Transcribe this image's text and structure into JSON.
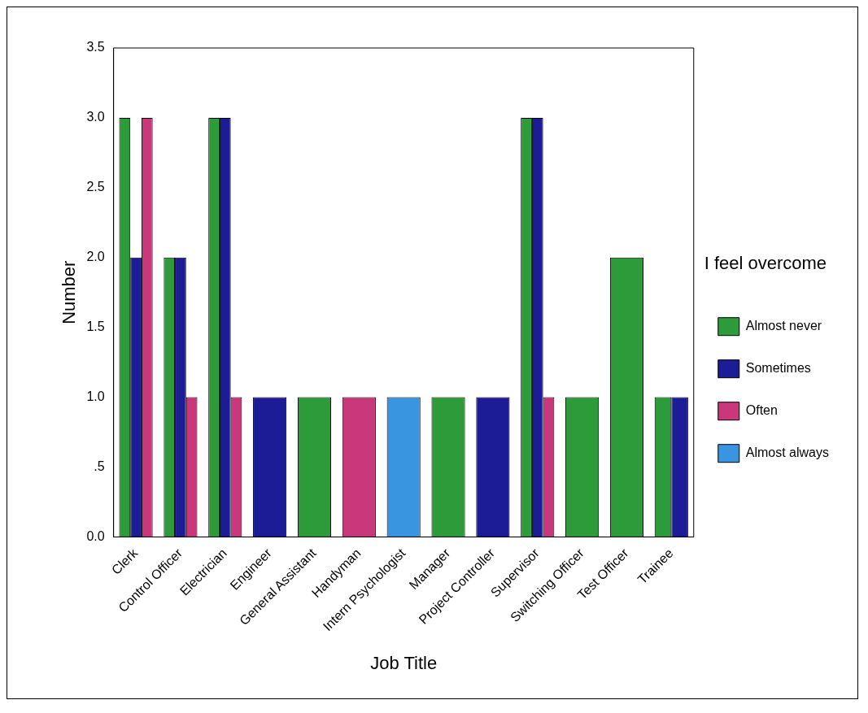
{
  "chart_data": {
    "type": "bar",
    "xlabel": "Job Title",
    "ylabel": "Number",
    "legend_title": "I feel overcome",
    "legend": "right",
    "categories": [
      "Clerk",
      "Control Officer",
      "Electrician",
      "Engineer",
      "General Assistant",
      "Handyman",
      "Intern Psychologist",
      "Manager",
      "Project Controller",
      "Supervisor",
      "Switching Officer",
      "Test Officer",
      "Trainee"
    ],
    "series": [
      {
        "name": "Almost never",
        "color": "#2e9b3a",
        "values": [
          3,
          2,
          3,
          null,
          1,
          null,
          null,
          1,
          null,
          3,
          1,
          2,
          1
        ]
      },
      {
        "name": "Sometimes",
        "color": "#1c1c96",
        "values": [
          2,
          2,
          3,
          1,
          null,
          null,
          null,
          null,
          1,
          3,
          null,
          null,
          1
        ]
      },
      {
        "name": "Often",
        "color": "#c8387a",
        "values": [
          3,
          1,
          1,
          null,
          null,
          1,
          null,
          null,
          null,
          1,
          null,
          null,
          null
        ]
      },
      {
        "name": "Almost always",
        "color": "#3a95e0",
        "values": [
          null,
          null,
          null,
          null,
          null,
          null,
          1,
          null,
          null,
          null,
          null,
          null,
          null
        ]
      }
    ],
    "ylim": [
      0,
      3.5
    ],
    "yticks": [
      {
        "value": 0,
        "label": "0.0"
      },
      {
        "value": 0.5,
        "label": ".5"
      },
      {
        "value": 1,
        "label": "1.0"
      },
      {
        "value": 1.5,
        "label": "1.5"
      },
      {
        "value": 2,
        "label": "2.0"
      },
      {
        "value": 2.5,
        "label": "2.5"
      },
      {
        "value": 3,
        "label": "3.0"
      },
      {
        "value": 3.5,
        "label": "3.5"
      }
    ],
    "grid": false
  }
}
